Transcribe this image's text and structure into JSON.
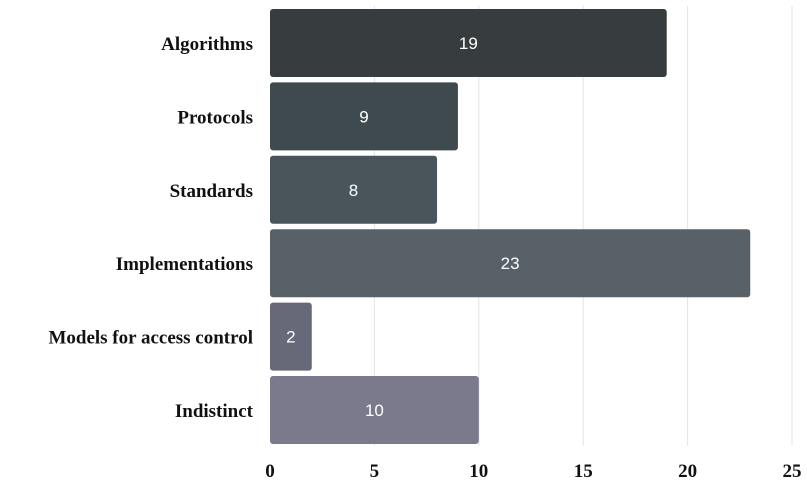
{
  "chart_data": {
    "type": "bar",
    "orientation": "horizontal",
    "categories": [
      "Algorithms",
      "Protocols",
      "Standards",
      "Implementations",
      "Models for access control",
      "Indistinct"
    ],
    "values": [
      19,
      9,
      8,
      23,
      2,
      10
    ],
    "bar_colors": [
      "#373d3f",
      "#3f4a4e",
      "#4a555b",
      "#586068",
      "#676978",
      "#7b7a8c"
    ],
    "xlim": [
      0,
      25
    ],
    "xticks": [
      "0",
      "5",
      "10",
      "15",
      "20",
      "25"
    ],
    "title": "",
    "xlabel": "",
    "ylabel": "",
    "grid": "vertical",
    "data_labels": true
  }
}
